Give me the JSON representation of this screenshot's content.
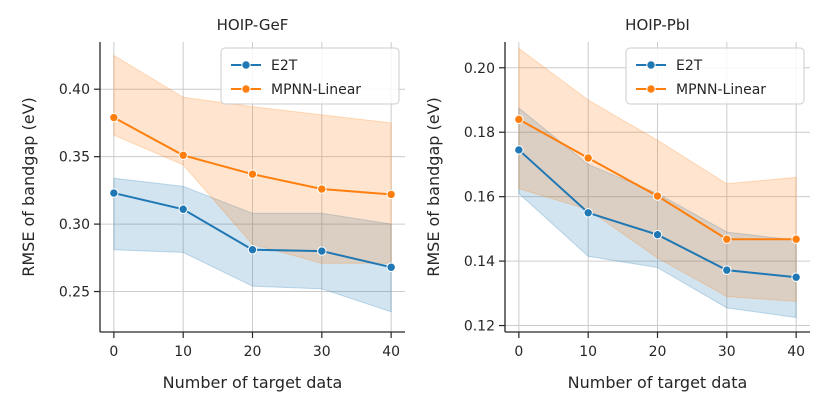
{
  "chart_data": [
    {
      "type": "line",
      "title": "HOIP-GeF",
      "xlabel": "Number of target data",
      "ylabel": "RMSE of bandgap (eV)",
      "x": [
        0,
        10,
        20,
        30,
        40
      ],
      "xticks": [
        "0",
        "10",
        "20",
        "30",
        "40"
      ],
      "xlim": [
        -2,
        42
      ],
      "ylim": [
        0.22,
        0.435
      ],
      "yticks": [
        0.25,
        0.3,
        0.35,
        0.4
      ],
      "ytick_labels": [
        "0.25",
        "0.30",
        "0.35",
        "0.40"
      ],
      "grid": true,
      "legend_position": "top-right",
      "series": [
        {
          "name": "E2T",
          "color": "#1f77b4",
          "values": [
            0.323,
            0.311,
            0.281,
            0.28,
            0.268
          ],
          "lower": [
            0.281,
            0.279,
            0.254,
            0.252,
            0.235
          ],
          "upper": [
            0.334,
            0.328,
            0.308,
            0.308,
            0.3
          ]
        },
        {
          "name": "MPNN-Linear",
          "color": "#ff7f0e",
          "values": [
            0.379,
            0.351,
            0.337,
            0.326,
            0.322
          ],
          "lower": [
            0.366,
            0.344,
            0.285,
            0.271,
            0.271
          ],
          "upper": [
            0.425,
            0.394,
            0.387,
            0.381,
            0.375
          ]
        }
      ]
    },
    {
      "type": "line",
      "title": "HOIP-PbI",
      "xlabel": "Number of target data",
      "ylabel": "RMSE of bandgap (eV)",
      "x": [
        0,
        10,
        20,
        30,
        40
      ],
      "xticks": [
        "0",
        "10",
        "20",
        "30",
        "40"
      ],
      "xlim": [
        -2,
        42
      ],
      "ylim": [
        0.118,
        0.208
      ],
      "yticks": [
        0.12,
        0.14,
        0.16,
        0.18,
        0.2
      ],
      "ytick_labels": [
        "0.12",
        "0.14",
        "0.16",
        "0.18",
        "0.20"
      ],
      "grid": true,
      "legend_position": "top-right",
      "series": [
        {
          "name": "E2T",
          "color": "#1f77b4",
          "values": [
            0.1745,
            0.155,
            0.1482,
            0.1372,
            0.135
          ],
          "lower": [
            0.161,
            0.1415,
            0.138,
            0.1255,
            0.1225
          ],
          "upper": [
            0.1875,
            0.17,
            0.161,
            0.149,
            0.1465
          ]
        },
        {
          "name": "MPNN-Linear",
          "color": "#ff7f0e",
          "values": [
            0.184,
            0.172,
            0.1602,
            0.1468,
            0.1468
          ],
          "lower": [
            0.1625,
            0.156,
            0.141,
            0.129,
            0.1275
          ],
          "upper": [
            0.206,
            0.19,
            0.1775,
            0.164,
            0.166
          ]
        }
      ]
    }
  ]
}
